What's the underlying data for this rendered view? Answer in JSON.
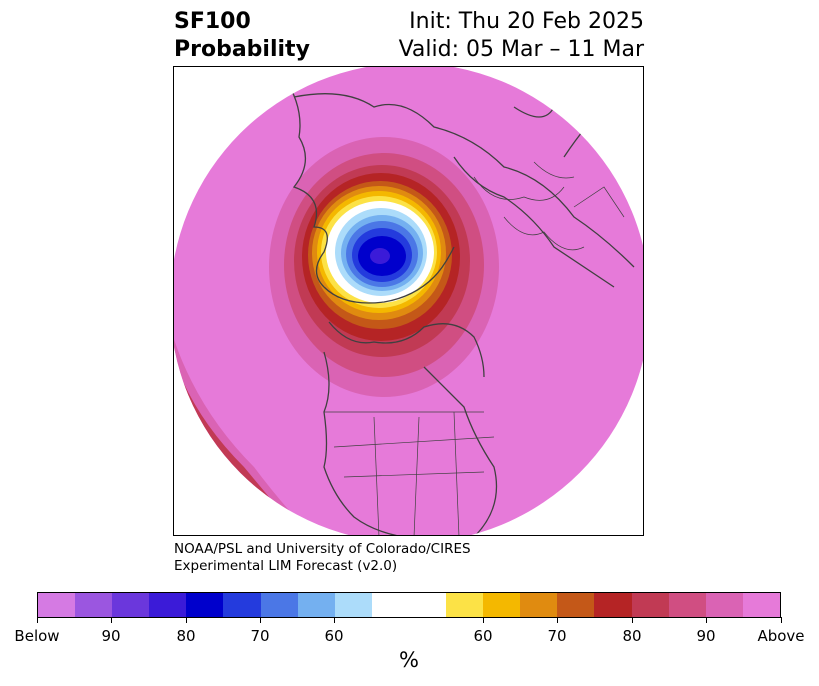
{
  "title": {
    "left_line1": "SF100",
    "left_line2": "Probability",
    "right_line1": "Init: Thu 20 Feb 2025",
    "right_line2": "Valid: 05 Mar – 11 Mar"
  },
  "credit": {
    "line1": "NOAA/PSL and University of Colorado/CIRES",
    "line2": "Experimental LIM Forecast (v2.0)"
  },
  "colorbar": {
    "units": "%",
    "colors": [
      "#d57ae3",
      "#9b56e0",
      "#6b37dc",
      "#3b1bd8",
      "#0000cc",
      "#243bdd",
      "#4b77e6",
      "#74b0f0",
      "#acdcfa",
      "#ffffff",
      "#ffffff",
      "#fce246",
      "#f4b800",
      "#e08b10",
      "#c45818",
      "#b52425",
      "#c13a54",
      "#d04e82",
      "#da63b4",
      "#e67ad9"
    ],
    "tick_labels": [
      "Below",
      "90",
      "80",
      "70",
      "60",
      "60",
      "70",
      "80",
      "90",
      "Above"
    ]
  },
  "map": {
    "background_color": "#e67ad9",
    "projection": "north polar stereographic"
  }
}
